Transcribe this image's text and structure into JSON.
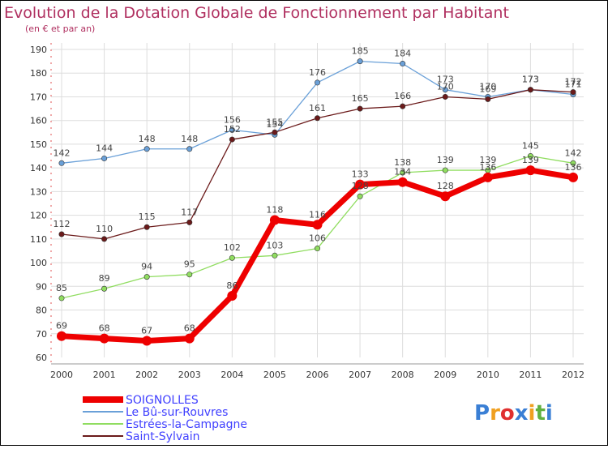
{
  "chart_data": {
    "type": "line",
    "title": "Evolution de la Dotation Globale de Fonctionnement par Habitant",
    "subtitle": "(en € et par an)",
    "xlabel": "",
    "ylabel": "",
    "ylim": [
      60,
      190
    ],
    "grid": true,
    "legend_position": "bottom-left",
    "x": [
      "2000",
      "2001",
      "2002",
      "2003",
      "2004",
      "2005",
      "2006",
      "2007",
      "2008",
      "2009",
      "2010",
      "2011",
      "2012"
    ],
    "y_ticks": [
      60,
      70,
      80,
      90,
      100,
      110,
      120,
      130,
      140,
      150,
      160,
      170,
      180,
      190
    ],
    "series": [
      {
        "name": "Le Bû-sur-Rouvres",
        "color": "#6aa0d8",
        "width": 1.3,
        "marker": 3.2,
        "values": [
          142,
          144,
          148,
          148,
          156,
          154,
          176,
          185,
          184,
          173,
          170,
          173,
          171
        ],
        "labels": [
          "142",
          "144",
          "148",
          "148",
          "156",
          "154",
          "176",
          "185",
          "184",
          "173",
          "170",
          "173",
          "171"
        ]
      },
      {
        "name": "Estrées-la-Campagne",
        "color": "#90dd60",
        "width": 1.3,
        "marker": 3.2,
        "values": [
          85,
          89,
          94,
          95,
          102,
          103,
          106,
          128,
          138,
          139,
          139,
          145,
          142
        ],
        "labels": [
          "85",
          "89",
          "94",
          "95",
          "102",
          "103",
          "106",
          "128",
          "138",
          "139",
          "139",
          "145",
          "142"
        ]
      },
      {
        "name": "Saint-Sylvain",
        "color": "#6b1a1a",
        "width": 1.3,
        "marker": 3.2,
        "values": [
          112,
          110,
          115,
          117,
          152,
          155,
          161,
          165,
          166,
          170,
          169,
          173,
          172
        ],
        "labels": [
          "112",
          "110",
          "115",
          "117",
          "152",
          "155",
          "161",
          "165",
          "166",
          "170",
          "169",
          "173",
          "172"
        ]
      },
      {
        "name": "SOIGNOLLES",
        "color": "#ee0000",
        "width": 7,
        "marker": 6,
        "values": [
          69,
          68,
          67,
          68,
          86,
          118,
          116,
          133,
          134,
          128,
          136,
          139,
          136
        ],
        "labels": [
          "69",
          "68",
          "67",
          "68",
          "86",
          "118",
          "116",
          "133",
          "134",
          "128",
          "136",
          "139",
          "136"
        ]
      }
    ],
    "legend": [
      {
        "name": "SOIGNOLLES",
        "color": "#ee0000"
      },
      {
        "name": "Le Bû-sur-Rouvres",
        "color": "#6aa0d8"
      },
      {
        "name": "Estrées-la-Campagne",
        "color": "#90dd60"
      },
      {
        "name": "Saint-Sylvain",
        "color": "#6b1a1a"
      }
    ]
  },
  "logo": {
    "text": "Proxiti",
    "letters": [
      {
        "char": "P",
        "color": "#3a7fd5"
      },
      {
        "char": "r",
        "color": "#f0a020"
      },
      {
        "char": "o",
        "color": "#e03030"
      },
      {
        "char": "x",
        "color": "#3a7fd5"
      },
      {
        "char": "i",
        "color": "#f0a020"
      },
      {
        "char": "t",
        "color": "#60b040"
      },
      {
        "char": "i",
        "color": "#3a7fd5"
      }
    ]
  }
}
